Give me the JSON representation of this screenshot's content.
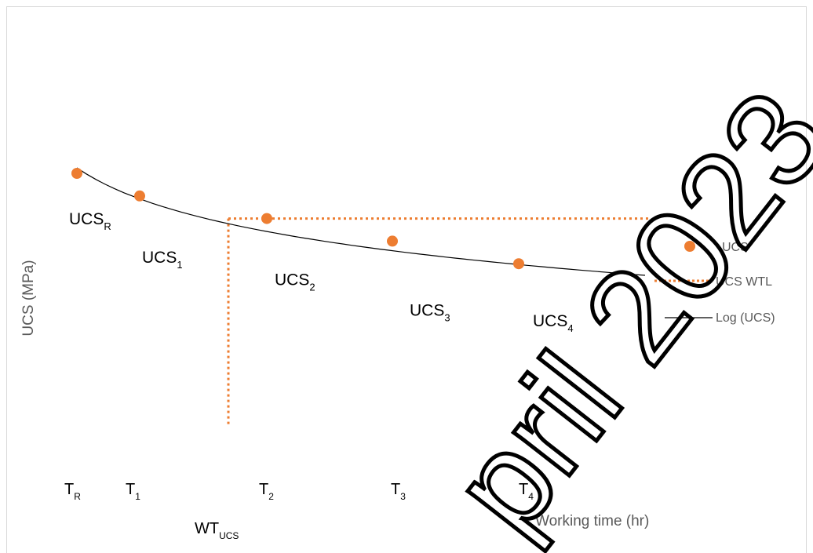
{
  "chart_data": {
    "type": "scatter",
    "title": "",
    "xlabel": "Working time (hr)",
    "ylabel": "UCS (MPa)",
    "grid": false,
    "legend_position": "right",
    "series": [
      {
        "name": "UCS",
        "kind": "markers",
        "color": "#ed7d31",
        "points": [
          {
            "label": "R",
            "x": 0.5,
            "y": 8.1
          },
          {
            "label": "1",
            "x": 1.0,
            "y": 7.2
          },
          {
            "label": "2",
            "x": 2.0,
            "y": 6.3
          },
          {
            "label": "3",
            "x": 3.0,
            "y": 5.4
          },
          {
            "label": "4",
            "x": 4.0,
            "y": 4.5
          }
        ]
      },
      {
        "name": "UCS WTL",
        "kind": "dotted-line",
        "color": "#ed7d31",
        "horizontal_level": 6.3,
        "threshold_x": 1.2
      },
      {
        "name": "Log (UCS)",
        "kind": "trendline",
        "color": "#000000"
      }
    ],
    "point_labels": [
      "UCS",
      "UCS",
      "UCS",
      "UCS",
      "UCS"
    ],
    "point_label_subs": [
      "R",
      "1",
      "2",
      "3",
      "4"
    ],
    "tick_labels": [
      "T",
      "T",
      "T",
      "T",
      "T"
    ],
    "tick_label_subs": [
      "R",
      "1",
      "2",
      "3",
      "4"
    ],
    "threshold_label": "WT",
    "threshold_label_sub": "UCS"
  },
  "watermark": "pril 2023"
}
